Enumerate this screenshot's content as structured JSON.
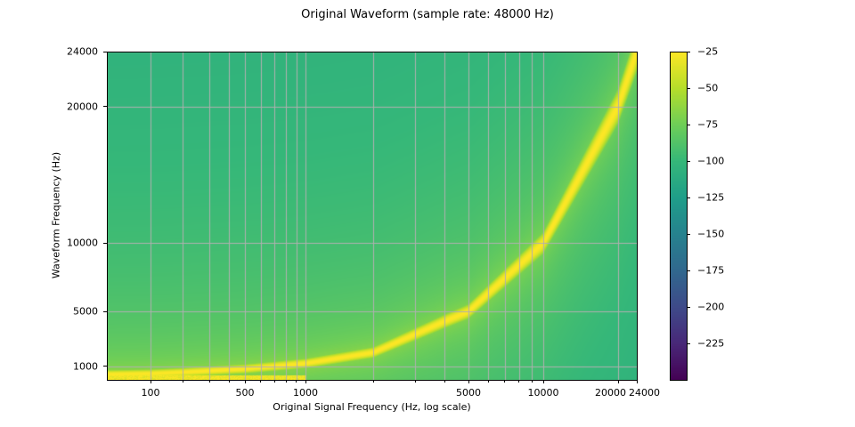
{
  "chart_data": {
    "type": "heatmap",
    "title": "Original Waveform (sample rate: 48000 Hz)",
    "xlabel": "Original Signal Frequency (Hz, log scale)",
    "ylabel": "Waveform Frequency (Hz)",
    "xscale": "log",
    "xlim": [
      40,
      24000
    ],
    "ylim": [
      0,
      24000
    ],
    "x_ticks": [
      {
        "value": 100,
        "label": "100"
      },
      {
        "value": 500,
        "label": "500"
      },
      {
        "value": 1000,
        "label": "1000"
      },
      {
        "value": 5000,
        "label": "5000"
      },
      {
        "value": 10000,
        "label": "10000"
      },
      {
        "value": 20000,
        "label": "20000"
      },
      {
        "value": 24000,
        "label": "24000"
      }
    ],
    "x_minor_ticks": [
      200,
      300,
      400,
      600,
      700,
      800,
      900,
      2000,
      3000,
      4000,
      6000,
      7000,
      8000,
      9000
    ],
    "y_ticks": [
      {
        "value": 24000,
        "label": "24000"
      },
      {
        "value": 20000,
        "label": "20000"
      },
      {
        "value": 10000,
        "label": "10000"
      },
      {
        "value": 5000,
        "label": "5000"
      },
      {
        "value": 1000,
        "label": "1000"
      }
    ],
    "grid": true,
    "colormap": "viridis",
    "colorbar": {
      "range": [
        -250,
        -25
      ],
      "ticks": [
        {
          "value": -25,
          "label": "−25"
        },
        {
          "value": -50,
          "label": "−50"
        },
        {
          "value": -75,
          "label": "−75"
        },
        {
          "value": -100,
          "label": "−100"
        },
        {
          "value": -125,
          "label": "−125"
        },
        {
          "value": -150,
          "label": "−150"
        },
        {
          "value": -175,
          "label": "−175"
        },
        {
          "value": -200,
          "label": "−200"
        },
        {
          "value": -225,
          "label": "−225"
        }
      ]
    },
    "peak_curve": {
      "level_db": -25,
      "points": [
        [
          40,
          400
        ],
        [
          100,
          450
        ],
        [
          200,
          550
        ],
        [
          500,
          800
        ],
        [
          1000,
          1200
        ],
        [
          2000,
          2000
        ],
        [
          5000,
          5000
        ],
        [
          10000,
          10000
        ],
        [
          20000,
          20000
        ],
        [
          24000,
          24000
        ]
      ]
    },
    "low_band": {
      "y": 150,
      "x_max": 1000,
      "level_db": -30
    },
    "background_level_db": -120,
    "grid_color": "#b0b0b0"
  }
}
